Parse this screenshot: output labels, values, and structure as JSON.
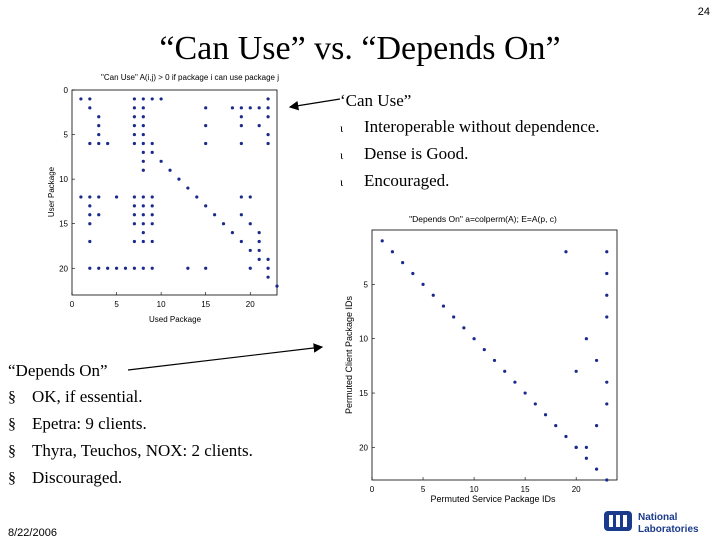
{
  "page_number": "24",
  "title": "“Can Use” vs. “Depends On”",
  "date": "8/22/2006",
  "can_use": {
    "heading": "‘Can Use”",
    "bullets": [
      "Interoperable without dependence.",
      "Dense is Good.",
      "Encouraged."
    ]
  },
  "depends_on": {
    "heading": "“Depends On”",
    "bullets": [
      "OK, if essential.",
      "Epetra: 9 clients.",
      "Thyra, Teuchos, NOX: 2 clients.",
      "Discouraged."
    ]
  },
  "logo": {
    "line1": "National",
    "line2": "Laboratories"
  },
  "colors": {
    "marker": "#1a2a8c",
    "axis": "#000000"
  },
  "chart_data": [
    {
      "type": "scatter",
      "title": "\"Can Use\" A(i,j) > 0 if package i can use package j",
      "xlabel": "Used Package",
      "ylabel": "User Package",
      "x_ticks": [
        "0",
        "5",
        "10",
        "15",
        "20"
      ],
      "y_ticks": [
        "0",
        "5",
        "10",
        "15",
        "20"
      ],
      "xlim": [
        0,
        23
      ],
      "ylim": [
        0,
        23
      ],
      "points": [
        [
          1,
          1
        ],
        [
          2,
          1
        ],
        [
          7,
          1
        ],
        [
          8,
          1
        ],
        [
          9,
          1
        ],
        [
          10,
          1
        ],
        [
          22,
          1
        ],
        [
          2,
          2
        ],
        [
          7,
          2
        ],
        [
          8,
          2
        ],
        [
          15,
          2
        ],
        [
          18,
          2
        ],
        [
          19,
          2
        ],
        [
          20,
          2
        ],
        [
          21,
          2
        ],
        [
          22,
          2
        ],
        [
          3,
          3
        ],
        [
          7,
          3
        ],
        [
          8,
          3
        ],
        [
          19,
          3
        ],
        [
          22,
          3
        ],
        [
          3,
          4
        ],
        [
          7,
          4
        ],
        [
          8,
          4
        ],
        [
          15,
          4
        ],
        [
          19,
          4
        ],
        [
          21,
          4
        ],
        [
          3,
          5
        ],
        [
          7,
          5
        ],
        [
          8,
          5
        ],
        [
          22,
          5
        ],
        [
          2,
          6
        ],
        [
          3,
          6
        ],
        [
          4,
          6
        ],
        [
          7,
          6
        ],
        [
          8,
          6
        ],
        [
          9,
          6
        ],
        [
          15,
          6
        ],
        [
          19,
          6
        ],
        [
          22,
          6
        ],
        [
          8,
          7
        ],
        [
          9,
          7
        ],
        [
          8,
          8
        ],
        [
          10,
          8
        ],
        [
          8,
          9
        ],
        [
          11,
          9
        ],
        [
          12,
          10
        ],
        [
          13,
          11
        ],
        [
          1,
          12
        ],
        [
          2,
          12
        ],
        [
          3,
          12
        ],
        [
          5,
          12
        ],
        [
          7,
          12
        ],
        [
          8,
          12
        ],
        [
          9,
          12
        ],
        [
          14,
          12
        ],
        [
          19,
          12
        ],
        [
          20,
          12
        ],
        [
          2,
          13
        ],
        [
          7,
          13
        ],
        [
          8,
          13
        ],
        [
          9,
          13
        ],
        [
          15,
          13
        ],
        [
          2,
          14
        ],
        [
          3,
          14
        ],
        [
          7,
          14
        ],
        [
          8,
          14
        ],
        [
          9,
          14
        ],
        [
          16,
          14
        ],
        [
          19,
          14
        ],
        [
          2,
          15
        ],
        [
          7,
          15
        ],
        [
          8,
          15
        ],
        [
          9,
          15
        ],
        [
          17,
          15
        ],
        [
          20,
          15
        ],
        [
          8,
          16
        ],
        [
          18,
          16
        ],
        [
          21,
          16
        ],
        [
          2,
          17
        ],
        [
          7,
          17
        ],
        [
          8,
          17
        ],
        [
          9,
          17
        ],
        [
          19,
          17
        ],
        [
          21,
          17
        ],
        [
          20,
          18
        ],
        [
          21,
          18
        ],
        [
          21,
          19
        ],
        [
          22,
          19
        ],
        [
          2,
          20
        ],
        [
          3,
          20
        ],
        [
          4,
          20
        ],
        [
          5,
          20
        ],
        [
          6,
          20
        ],
        [
          7,
          20
        ],
        [
          8,
          20
        ],
        [
          9,
          20
        ],
        [
          13,
          20
        ],
        [
          15,
          20
        ],
        [
          20,
          20
        ],
        [
          22,
          20
        ],
        [
          22,
          21
        ],
        [
          23,
          22
        ]
      ]
    },
    {
      "type": "scatter",
      "title": "\"Depends On\" a=colperm(A); E=A(p, c)",
      "xlabel": "Permuted Service Package IDs",
      "ylabel": "Permuted Client Package IDs",
      "x_ticks": [
        "0",
        "5",
        "10",
        "15",
        "20"
      ],
      "y_ticks": [
        "5",
        "10",
        "15",
        "20"
      ],
      "xlim": [
        0,
        24
      ],
      "ylim": [
        0,
        23
      ],
      "points": [
        [
          1,
          1
        ],
        [
          2,
          2
        ],
        [
          3,
          3
        ],
        [
          4,
          4
        ],
        [
          5,
          5
        ],
        [
          6,
          6
        ],
        [
          7,
          7
        ],
        [
          8,
          8
        ],
        [
          9,
          9
        ],
        [
          10,
          10
        ],
        [
          11,
          11
        ],
        [
          12,
          12
        ],
        [
          13,
          13
        ],
        [
          14,
          14
        ],
        [
          15,
          15
        ],
        [
          16,
          16
        ],
        [
          17,
          17
        ],
        [
          18,
          18
        ],
        [
          19,
          19
        ],
        [
          20,
          20
        ],
        [
          21,
          21
        ],
        [
          22,
          22
        ],
        [
          23,
          23
        ],
        [
          19,
          2
        ],
        [
          23,
          2
        ],
        [
          23,
          4
        ],
        [
          23,
          6
        ],
        [
          23,
          8
        ],
        [
          20,
          13
        ],
        [
          21,
          10
        ],
        [
          22,
          12
        ],
        [
          22,
          18
        ],
        [
          23,
          14
        ],
        [
          23,
          16
        ],
        [
          20,
          20
        ],
        [
          21,
          20
        ]
      ]
    }
  ]
}
